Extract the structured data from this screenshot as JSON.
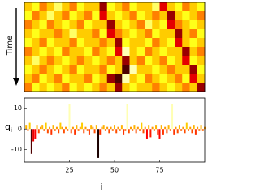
{
  "chart_data": [
    {
      "type": "heatmap",
      "ylabel": "Time",
      "colormap": "hot",
      "clim": [
        0,
        1
      ],
      "values": [
        [
          0.6,
          0.7,
          0.5,
          0.6,
          0.8,
          0.6,
          0.5,
          0.7,
          0.6,
          0.6,
          0.2,
          0.7,
          0.6,
          0.5,
          0.7,
          0.6,
          0.6,
          0.8,
          0.3,
          0.6,
          0.7,
          0.5,
          0.6,
          0.7
        ],
        [
          0.7,
          0.5,
          0.6,
          0.8,
          0.6,
          0.5,
          0.7,
          0.6,
          0.5,
          0.7,
          0.3,
          0.6,
          0.7,
          0.6,
          0.5,
          0.7,
          0.6,
          0.5,
          0.6,
          0.2,
          0.6,
          0.7,
          0.6,
          0.5
        ],
        [
          0.5,
          0.6,
          0.7,
          0.5,
          0.6,
          0.7,
          0.6,
          0.5,
          0.7,
          0.6,
          0.6,
          0.2,
          0.6,
          0.7,
          0.6,
          0.5,
          0.8,
          0.6,
          0.7,
          0.3,
          0.5,
          0.6,
          0.7,
          0.6
        ],
        [
          0.6,
          0.7,
          0.6,
          0.6,
          0.5,
          0.6,
          0.8,
          0.6,
          0.6,
          0.5,
          0.7,
          0.3,
          0.5,
          0.6,
          0.7,
          0.6,
          0.5,
          0.7,
          0.6,
          0.6,
          0.2,
          0.6,
          0.5,
          0.7
        ],
        [
          0.7,
          0.6,
          0.5,
          0.7,
          0.6,
          0.6,
          0.5,
          0.7,
          0.6,
          0.6,
          0.5,
          0.6,
          0.2,
          0.7,
          0.6,
          0.6,
          0.7,
          0.5,
          0.6,
          0.7,
          0.3,
          0.6,
          0.7,
          0.6
        ],
        [
          0.5,
          0.6,
          0.7,
          0.6,
          0.7,
          0.5,
          0.6,
          0.6,
          0.7,
          0.5,
          0.6,
          0.7,
          0.3,
          0.9,
          0.6,
          0.7,
          0.5,
          0.6,
          0.7,
          0.6,
          0.6,
          0.2,
          0.6,
          0.5
        ],
        [
          0.6,
          0.8,
          0.6,
          0.5,
          0.6,
          0.7,
          0.6,
          0.5,
          0.6,
          0.7,
          0.6,
          0.5,
          0.6,
          0.2,
          0.6,
          0.5,
          0.7,
          0.6,
          0.5,
          0.7,
          0.6,
          0.3,
          0.7,
          0.6
        ],
        [
          0.7,
          0.6,
          0.5,
          0.6,
          0.7,
          0.6,
          0.5,
          0.7,
          0.6,
          0.6,
          0.5,
          0.7,
          0.6,
          0.1,
          0.9,
          0.6,
          0.6,
          0.7,
          0.6,
          0.5,
          0.6,
          0.6,
          0.2,
          0.7
        ],
        [
          0.6,
          0.5,
          0.7,
          0.6,
          0.5,
          0.7,
          0.6,
          0.6,
          0.5,
          0.7,
          0.6,
          0.2,
          0.1,
          0.9,
          0.6,
          0.7,
          0.5,
          0.6,
          0.7,
          0.6,
          0.5,
          0.7,
          0.3,
          0.6
        ],
        [
          0.5,
          0.7,
          0.6,
          0.7,
          0.6,
          0.5,
          0.7,
          0.6,
          0.7,
          0.6,
          0.5,
          0.6,
          0.2,
          0.6,
          0.7,
          0.6,
          0.6,
          0.5,
          0.6,
          0.7,
          0.6,
          0.5,
          0.6,
          0.2
        ]
      ]
    },
    {
      "type": "bar",
      "xlabel": "i",
      "ylabel": "q",
      "ylabel_sub": "i",
      "colormap": "hot",
      "clim": [
        -15,
        15
      ],
      "x": [
        1,
        2,
        3,
        4,
        5,
        6,
        7,
        8,
        9,
        10,
        11,
        12,
        13,
        14,
        15,
        16,
        17,
        18,
        19,
        20,
        21,
        22,
        23,
        24,
        25,
        26,
        27,
        28,
        29,
        30,
        31,
        32,
        33,
        34,
        35,
        36,
        37,
        38,
        39,
        40,
        41,
        42,
        43,
        44,
        45,
        46,
        47,
        48,
        49,
        50,
        51,
        52,
        53,
        54,
        55,
        56,
        57,
        58,
        59,
        60,
        61,
        62,
        63,
        64,
        65,
        66,
        67,
        68,
        69,
        70,
        71,
        72,
        73,
        74,
        75,
        76,
        77,
        78,
        79,
        80,
        81,
        82,
        83,
        84,
        85,
        86,
        87,
        88,
        89,
        90,
        91,
        92,
        93,
        94,
        95,
        96,
        97,
        98,
        99,
        100
      ],
      "values": [
        2,
        -1,
        3,
        -12,
        -6,
        -5,
        2,
        -2,
        1,
        2,
        -1,
        3,
        -2,
        1,
        -3,
        2,
        -1,
        1,
        -2,
        3,
        1,
        -2,
        1,
        -1,
        12,
        -2,
        1,
        -3,
        2,
        -1,
        1,
        3,
        -2,
        1,
        -1,
        -3,
        2,
        1,
        -2,
        2,
        -14,
        -3,
        1,
        2,
        -1,
        1,
        -2,
        1,
        -1,
        2,
        -2,
        1,
        -1,
        2,
        -3,
        -1,
        12,
        -2,
        1,
        -1,
        2,
        -2,
        1,
        -1,
        3,
        -2,
        1,
        -5,
        2,
        -4,
        1,
        -1,
        2,
        -3,
        -5,
        2,
        -3,
        1,
        -2,
        2,
        -1,
        12,
        -3,
        1,
        -2,
        2,
        -1,
        1,
        -2,
        3,
        -1,
        1,
        -2,
        2,
        -3,
        1,
        -1,
        2,
        -1,
        1
      ],
      "xlim": [
        0,
        100
      ],
      "xticks": [
        25,
        50,
        75
      ],
      "ylim": [
        -16,
        15
      ],
      "yticks": [
        -10,
        0,
        10
      ]
    }
  ]
}
